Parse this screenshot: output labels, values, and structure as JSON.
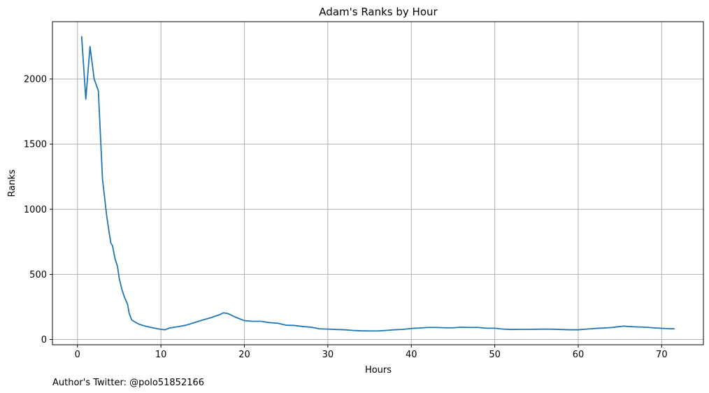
{
  "chart_data": {
    "type": "line",
    "title": "Adam's Ranks by Hour",
    "xlabel": "Hours",
    "ylabel": "Ranks",
    "xlim": [
      -3,
      75
    ],
    "ylim": [
      -40,
      2440
    ],
    "x_ticks": [
      0,
      10,
      20,
      30,
      40,
      50,
      60,
      70
    ],
    "y_ticks": [
      0,
      500,
      1000,
      1500,
      2000
    ],
    "grid": true,
    "line_color": "#1f77b4",
    "series": [
      {
        "points": [
          [
            0.5,
            2325
          ],
          [
            1.0,
            1845
          ],
          [
            1.5,
            2250
          ],
          [
            2.0,
            2000
          ],
          [
            2.5,
            1910
          ],
          [
            3.0,
            1230
          ],
          [
            3.5,
            950
          ],
          [
            3.8,
            820
          ],
          [
            4.0,
            740
          ],
          [
            4.2,
            720
          ],
          [
            4.5,
            620
          ],
          [
            4.8,
            560
          ],
          [
            5.0,
            470
          ],
          [
            5.3,
            390
          ],
          [
            5.6,
            330
          ],
          [
            6.0,
            270
          ],
          [
            6.2,
            200
          ],
          [
            6.5,
            150
          ],
          [
            7.0,
            130
          ],
          [
            7.5,
            115
          ],
          [
            8.0,
            105
          ],
          [
            9.0,
            90
          ],
          [
            10.0,
            78
          ],
          [
            10.5,
            75
          ],
          [
            11.0,
            88
          ],
          [
            12.0,
            98
          ],
          [
            13.0,
            110
          ],
          [
            14.0,
            130
          ],
          [
            15.0,
            150
          ],
          [
            16.0,
            168
          ],
          [
            17.0,
            190
          ],
          [
            17.5,
            205
          ],
          [
            18.0,
            200
          ],
          [
            18.5,
            185
          ],
          [
            19.0,
            170
          ],
          [
            20.0,
            145
          ],
          [
            21.0,
            140
          ],
          [
            22.0,
            140
          ],
          [
            23.0,
            130
          ],
          [
            24.0,
            125
          ],
          [
            25.0,
            110
          ],
          [
            26.0,
            108
          ],
          [
            27.0,
            100
          ],
          [
            28.0,
            95
          ],
          [
            29.0,
            82
          ],
          [
            30.0,
            80
          ],
          [
            31.0,
            77
          ],
          [
            32.0,
            75
          ],
          [
            33.0,
            70
          ],
          [
            34.0,
            67
          ],
          [
            35.0,
            66
          ],
          [
            36.0,
            66
          ],
          [
            37.0,
            70
          ],
          [
            38.0,
            75
          ],
          [
            39.0,
            78
          ],
          [
            40.0,
            85
          ],
          [
            41.0,
            88
          ],
          [
            42.0,
            93
          ],
          [
            43.0,
            93
          ],
          [
            44.0,
            90
          ],
          [
            45.0,
            90
          ],
          [
            46.0,
            95
          ],
          [
            47.0,
            93
          ],
          [
            48.0,
            93
          ],
          [
            49.0,
            87
          ],
          [
            50.0,
            87
          ],
          [
            51.0,
            80
          ],
          [
            52.0,
            77
          ],
          [
            53.0,
            78
          ],
          [
            54.0,
            78
          ],
          [
            55.0,
            79
          ],
          [
            56.0,
            80
          ],
          [
            57.0,
            79
          ],
          [
            58.0,
            77
          ],
          [
            59.0,
            75
          ],
          [
            60.0,
            75
          ],
          [
            61.0,
            80
          ],
          [
            62.0,
            85
          ],
          [
            63.0,
            88
          ],
          [
            64.0,
            92
          ],
          [
            65.0,
            100
          ],
          [
            65.5,
            103
          ],
          [
            66.0,
            100
          ],
          [
            67.0,
            97
          ],
          [
            68.0,
            95
          ],
          [
            69.0,
            90
          ],
          [
            70.0,
            86
          ],
          [
            71.0,
            83
          ],
          [
            71.5,
            83
          ]
        ]
      }
    ],
    "annotation": "Author's Twitter: @polo51852166"
  }
}
